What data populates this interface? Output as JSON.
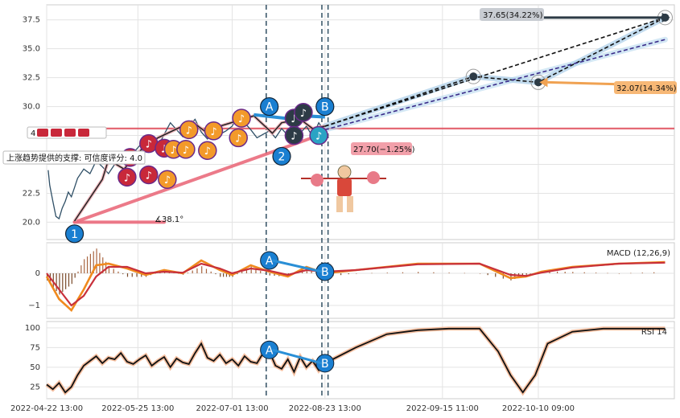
{
  "chart_data": {
    "type": "line",
    "panels": {
      "price": {
        "ylim": [
          18.5,
          38.8
        ],
        "yticks": [
          20.0,
          22.5,
          25.0,
          27.5,
          30.0,
          32.5,
          35.0,
          37.5
        ],
        "ytick_labels": [
          "20.0",
          "22.5",
          "",
          "",
          "30.0",
          "32.5",
          "35.0",
          "37.5"
        ],
        "resistance_level": 28.1,
        "series": [
          {
            "x": [
              0.5,
              1,
              2,
              3,
              4,
              5,
              6,
              7,
              8,
              9,
              10,
              12,
              14,
              16,
              18,
              20,
              22,
              24,
              26,
              28,
              30,
              32,
              34,
              36,
              38,
              40,
              42,
              44,
              46,
              48,
              50,
              52,
              54,
              56,
              58,
              60,
              62,
              64,
              66,
              68,
              70,
              72,
              74,
              76,
              78,
              80,
              82,
              84,
              86,
              88,
              89.5
            ],
            "y": [
              24.5,
              23.2,
              21.8,
              20.5,
              20.3,
              21.2,
              21.8,
              22.6,
              22.2,
              23.0,
              23.8,
              24.6,
              24.2,
              25.3,
              24.8,
              24.2,
              25.0,
              25.4,
              25.8,
              26.0,
              26.6,
              27.4,
              27.0,
              26.5,
              27.6,
              28.6,
              28.0,
              27.4,
              28.3,
              28.9,
              27.8,
              27.2,
              28.0,
              27.6,
              27.9,
              28.3,
              29.3,
              28.6,
              28.0,
              27.3,
              27.6,
              27.9,
              27.3,
              28.1,
              27.5,
              27.0,
              27.7,
              28.3,
              27.4,
              28.6,
              28.0
            ]
          }
        ],
        "trend_lines": [
          {
            "name": "black zigzag",
            "x": [
              9,
              18,
              20,
              25,
              31,
              36,
              47,
              51,
              67,
              73,
              76,
              82,
              86,
              90
            ],
            "y": [
              20.1,
              23.7,
              25.4,
              24.6,
              26.4,
              27.3,
              28.7,
              27.9,
              29.2,
              27.7,
              28.6,
              28.9,
              28.1,
              28.3
            ]
          },
          {
            "name": "support line",
            "x": [
              9,
              90
            ],
            "y": [
              20.0,
              27.7
            ]
          },
          {
            "name": "blue zigzag",
            "x": [
              67,
              80,
              83,
              90
            ],
            "y": [
              29.3,
              28.9,
              29.2,
              29.1
            ]
          },
          {
            "name": "projection upper",
            "x": [
              90,
              138,
              159,
              200
            ],
            "y": [
              28.3,
              32.6,
              32.1,
              37.7
            ]
          },
          {
            "name": "projection lower",
            "x": [
              90,
              200
            ],
            "y": [
              28.0,
              35.8
            ]
          }
        ],
        "markers": [
          {
            "label": "1",
            "x": 9,
            "y": 19.0
          },
          {
            "label": "2",
            "x": 76,
            "y": 25.7
          },
          {
            "label": "A",
            "x": 72,
            "y": 30.0
          },
          {
            "label": "B",
            "x": 90,
            "y": 30.0
          }
        ],
        "annotations": {
          "angle": "∡38.1°",
          "support_note": "上涨趋势提供的支撑: 可信度评分: 4.0",
          "score_label": "4",
          "current": "27.70(−1.25%)",
          "target_high": "37.65(34.22%)",
          "target_low": "32.07(14.34%)"
        }
      },
      "macd": {
        "label": "MACD (12,26,9)",
        "ylim": [
          -1.4,
          0.95
        ],
        "yticks": [
          -1,
          0
        ],
        "x": [
          0,
          4,
          8,
          12,
          16,
          20,
          26,
          32,
          38,
          44,
          50,
          56,
          60,
          66,
          72,
          78,
          84,
          90,
          100,
          120,
          140,
          150,
          155,
          160,
          170,
          185,
          200
        ],
        "macd": [
          -0.1,
          -0.8,
          -1.15,
          -0.5,
          0.25,
          0.3,
          0.15,
          -0.05,
          0.1,
          0.0,
          0.4,
          0.1,
          -0.05,
          0.25,
          0.05,
          -0.1,
          0.2,
          0.0,
          0.1,
          0.3,
          0.3,
          -0.15,
          -0.1,
          0.05,
          0.2,
          0.3,
          0.35
        ],
        "signal": [
          0.0,
          -0.5,
          -1.0,
          -0.7,
          -0.1,
          0.2,
          0.2,
          0.0,
          0.05,
          0.02,
          0.3,
          0.15,
          0.0,
          0.15,
          0.08,
          -0.05,
          0.1,
          0.05,
          0.1,
          0.28,
          0.3,
          -0.05,
          -0.08,
          0.02,
          0.18,
          0.3,
          0.33
        ]
      },
      "rsi": {
        "label": "RSI 14",
        "ylim": [
          10,
          108
        ],
        "yticks": [
          25,
          50,
          75,
          100
        ],
        "x": [
          0,
          2,
          4,
          6,
          8,
          10,
          12,
          14,
          16,
          18,
          20,
          22,
          24,
          26,
          28,
          30,
          32,
          34,
          36,
          38,
          40,
          42,
          44,
          46,
          48,
          50,
          52,
          54,
          56,
          58,
          60,
          62,
          64,
          66,
          68,
          70,
          72,
          74,
          76,
          78,
          80,
          82,
          84,
          86,
          88,
          90,
          100,
          110,
          120,
          130,
          140,
          146,
          150,
          154,
          158,
          162,
          170,
          180,
          190,
          200
        ],
        "y": [
          28,
          22,
          30,
          18,
          25,
          40,
          52,
          58,
          64,
          55,
          62,
          60,
          68,
          57,
          54,
          60,
          65,
          52,
          58,
          63,
          50,
          61,
          56,
          54,
          68,
          80,
          62,
          58,
          66,
          55,
          60,
          52,
          64,
          57,
          55,
          68,
          70,
          52,
          48,
          60,
          44,
          63,
          50,
          58,
          46,
          55,
          75,
          92,
          97,
          99,
          99,
          70,
          40,
          18,
          40,
          80,
          95,
          99,
          99,
          99
        ]
      }
    },
    "x_axis": {
      "ticks": [
        0,
        29.5,
        60,
        90,
        128,
        159
      ],
      "labels": [
        "2022-04-22 13:00",
        "2022-05-25 13:00",
        "2022-07-01 13:00",
        "2022-08-23 13:00",
        "2022-09-15 11:00",
        "2022-10-10 09:00"
      ]
    },
    "vlines": [
      71,
      89,
      91
    ],
    "colors": {
      "price": "#2f4f66",
      "resistance": "#e0505e",
      "support": "#ea6b7c",
      "macd": "#f08a1e",
      "signal": "#c8303a",
      "marker": "#1a7fd1",
      "note_red": "#c8283a",
      "note_orange": "#f39a2a",
      "note_dark": "#2d3b46"
    }
  }
}
